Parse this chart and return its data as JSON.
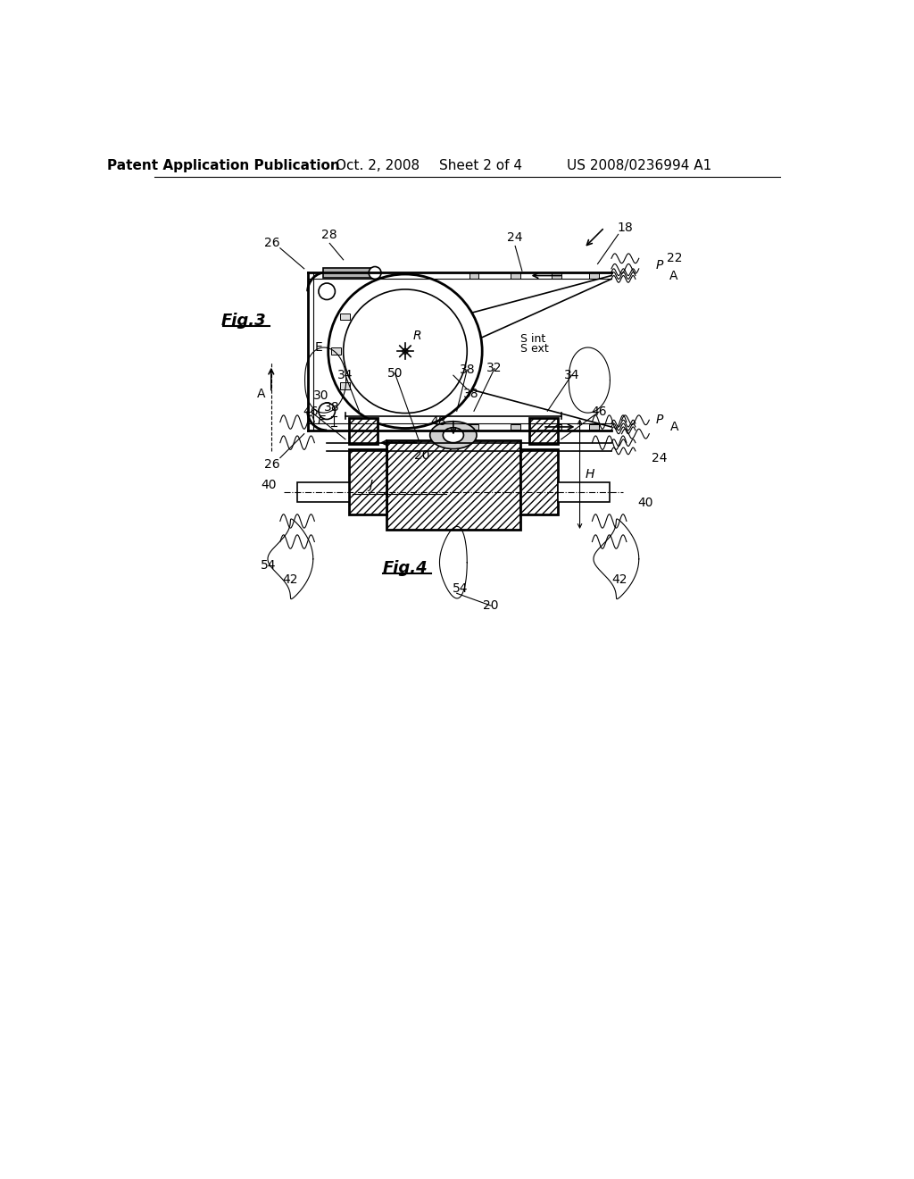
{
  "bg_color": "#ffffff",
  "line_color": "#000000",
  "header_text": "Patent Application Publication",
  "header_date": "Oct. 2, 2008",
  "header_sheet": "Sheet 2 of 4",
  "header_patent": "US 2008/0236994 A1",
  "fig3_label": "Fig.3",
  "fig4_label": "Fig.4",
  "font_size_header": 11,
  "font_size_labels": 10,
  "font_size_fig": 13
}
